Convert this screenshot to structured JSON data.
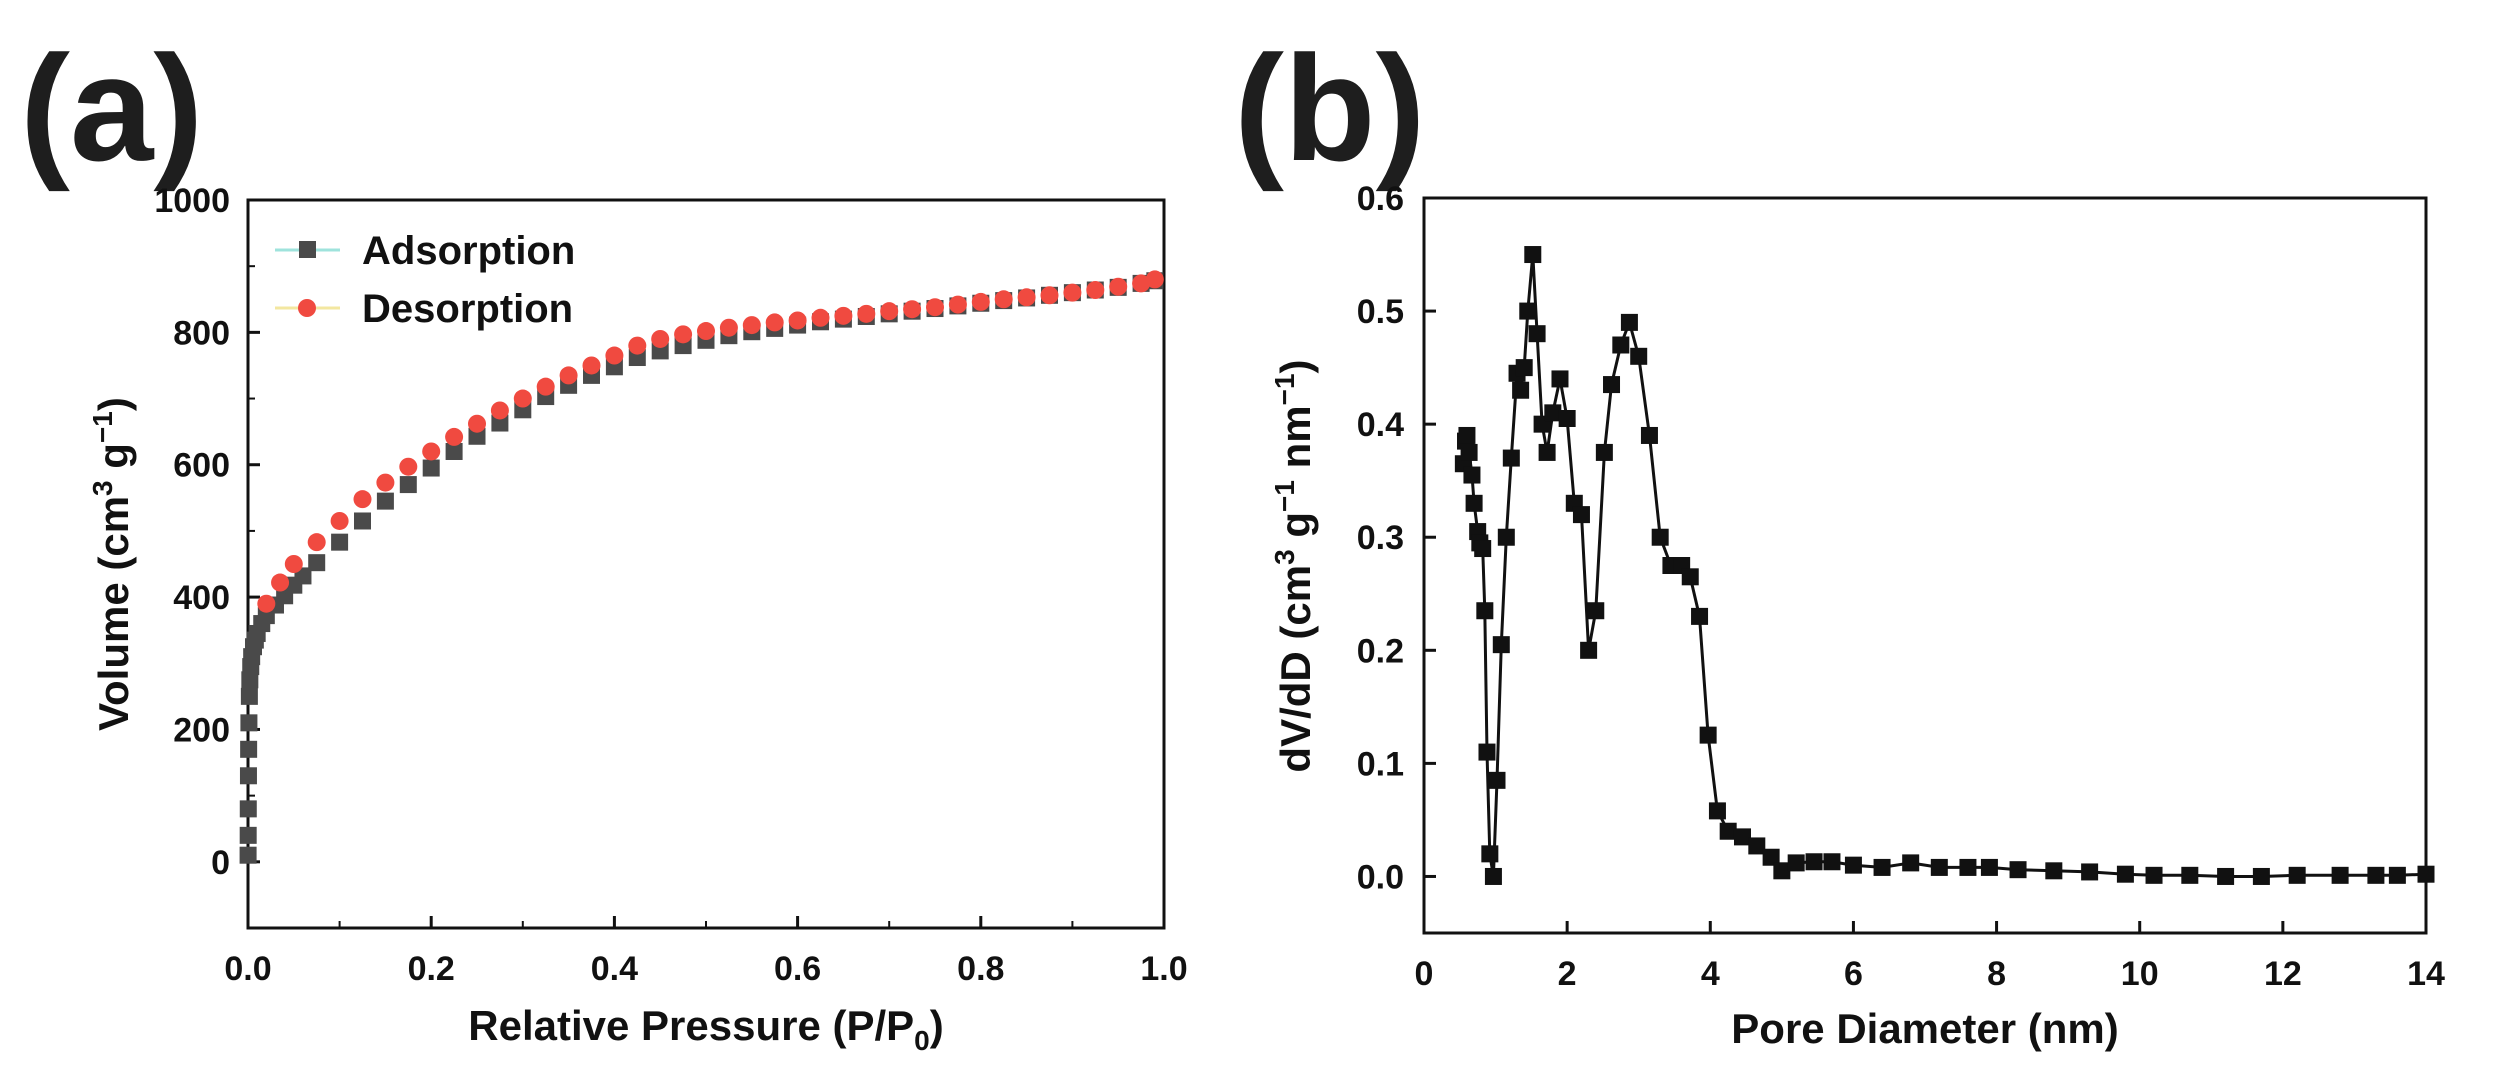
{
  "chart_data": [
    {
      "panel": "(a)",
      "type": "scatter",
      "xlabel": "Relative Pressure (P/P",
      "xlabel_sub": "0",
      "xlabel_tail": ")",
      "ylabel": "Volume (cm",
      "ylabel_sup": "3",
      "ylabel_mid": " g",
      "ylabel_sup2": "−1",
      "ylabel_tail": ")",
      "xlim": [
        0.0,
        1.0
      ],
      "ylim": [
        -100,
        1000
      ],
      "xticks": [
        0.0,
        0.2,
        0.4,
        0.6,
        0.8,
        1.0
      ],
      "xtick_labels": [
        "0.0",
        "0.2",
        "0.4",
        "0.6",
        "0.8",
        "1.0"
      ],
      "yticks": [
        0,
        200,
        400,
        600,
        800,
        1000
      ],
      "ytick_labels": [
        "0",
        "200",
        "400",
        "600",
        "800",
        "1000"
      ],
      "legend_position": "top-left",
      "series": [
        {
          "name": "Adsorption",
          "color": "#4a4a4a",
          "marker": "square",
          "x": [
            0.0001,
            0.0002,
            0.0003,
            0.0005,
            0.0007,
            0.001,
            0.0015,
            0.002,
            0.003,
            0.004,
            0.006,
            0.008,
            0.01,
            0.015,
            0.02,
            0.03,
            0.04,
            0.05,
            0.06,
            0.075,
            0.1,
            0.125,
            0.15,
            0.175,
            0.2,
            0.225,
            0.25,
            0.275,
            0.3,
            0.325,
            0.35,
            0.375,
            0.4,
            0.425,
            0.45,
            0.475,
            0.5,
            0.525,
            0.55,
            0.575,
            0.6,
            0.625,
            0.65,
            0.675,
            0.7,
            0.725,
            0.75,
            0.775,
            0.8,
            0.825,
            0.85,
            0.875,
            0.9,
            0.925,
            0.95,
            0.975,
            0.99
          ],
          "y": [
            10,
            40,
            80,
            130,
            170,
            210,
            250,
            275,
            295,
            310,
            325,
            335,
            345,
            360,
            372,
            388,
            402,
            418,
            432,
            452,
            483,
            515,
            545,
            570,
            595,
            620,
            643,
            663,
            683,
            703,
            720,
            735,
            748,
            762,
            772,
            780,
            788,
            795,
            801,
            806,
            811,
            816,
            820,
            824,
            828,
            832,
            836,
            840,
            844,
            848,
            852,
            856,
            860,
            864,
            868,
            874,
            878
          ]
        },
        {
          "name": "Desorption",
          "color": "#f04a40",
          "marker": "circle",
          "x": [
            0.99,
            0.975,
            0.95,
            0.925,
            0.9,
            0.875,
            0.85,
            0.825,
            0.8,
            0.775,
            0.75,
            0.725,
            0.7,
            0.675,
            0.65,
            0.625,
            0.6,
            0.575,
            0.55,
            0.525,
            0.5,
            0.475,
            0.45,
            0.425,
            0.4,
            0.375,
            0.35,
            0.325,
            0.3,
            0.275,
            0.25,
            0.225,
            0.2,
            0.175,
            0.15,
            0.125,
            0.1,
            0.075,
            0.05,
            0.035,
            0.02
          ],
          "y": [
            880,
            874,
            869,
            864,
            860,
            856,
            853,
            850,
            846,
            842,
            838,
            835,
            832,
            828,
            825,
            822,
            818,
            815,
            811,
            807,
            802,
            797,
            790,
            780,
            765,
            750,
            735,
            718,
            700,
            682,
            662,
            642,
            620,
            597,
            573,
            548,
            515,
            483,
            450,
            422,
            390
          ]
        }
      ]
    },
    {
      "panel": "(b)",
      "type": "line",
      "xlabel": "Pore Diameter (nm)",
      "ylabel": "dV/dD (cm",
      "ylabel_sup": "3",
      "ylabel_mid": " g",
      "ylabel_sup2": "−1",
      "ylabel_mid2": " nm",
      "ylabel_sup3": "−1",
      "ylabel_tail": ")",
      "xlim": [
        0,
        14
      ],
      "ylim": [
        -0.05,
        0.6
      ],
      "xticks": [
        0,
        2,
        4,
        6,
        8,
        10,
        12,
        14
      ],
      "xtick_labels": [
        "0",
        "2",
        "4",
        "6",
        "8",
        "10",
        "12",
        "14"
      ],
      "yticks": [
        0.0,
        0.1,
        0.2,
        0.3,
        0.4,
        0.5,
        0.6
      ],
      "ytick_labels": [
        "0.0",
        "0.1",
        "0.2",
        "0.3",
        "0.4",
        "0.5",
        "0.6"
      ],
      "series": [
        {
          "name": "dV/dD",
          "color": "#111111",
          "marker": "square",
          "x": [
            0.55,
            0.58,
            0.6,
            0.63,
            0.67,
            0.7,
            0.75,
            0.78,
            0.82,
            0.85,
            0.88,
            0.92,
            0.97,
            1.02,
            1.08,
            1.15,
            1.22,
            1.3,
            1.35,
            1.4,
            1.45,
            1.52,
            1.58,
            1.65,
            1.72,
            1.8,
            1.9,
            2.0,
            2.1,
            2.2,
            2.3,
            2.4,
            2.52,
            2.62,
            2.75,
            2.87,
            3.0,
            3.15,
            3.3,
            3.45,
            3.6,
            3.72,
            3.85,
            3.97,
            4.1,
            4.25,
            4.45,
            4.65,
            4.85,
            5.0,
            5.2,
            5.45,
            5.7,
            6.0,
            6.4,
            6.8,
            7.2,
            7.6,
            7.9,
            8.3,
            8.8,
            9.3,
            9.8,
            10.2,
            10.7,
            11.2,
            11.7,
            12.2,
            12.8,
            13.3,
            13.6,
            14.0
          ],
          "y": [
            0.365,
            0.385,
            0.39,
            0.375,
            0.355,
            0.33,
            0.305,
            0.295,
            0.29,
            0.235,
            0.11,
            0.02,
            0.0,
            0.085,
            0.205,
            0.3,
            0.37,
            0.445,
            0.43,
            0.45,
            0.5,
            0.55,
            0.48,
            0.4,
            0.375,
            0.41,
            0.44,
            0.405,
            0.33,
            0.32,
            0.2,
            0.235,
            0.375,
            0.435,
            0.47,
            0.49,
            0.46,
            0.39,
            0.3,
            0.275,
            0.275,
            0.265,
            0.23,
            0.125,
            0.058,
            0.04,
            0.035,
            0.027,
            0.017,
            0.005,
            0.012,
            0.013,
            0.013,
            0.01,
            0.008,
            0.012,
            0.008,
            0.008,
            0.008,
            0.006,
            0.005,
            0.004,
            0.002,
            0.001,
            0.001,
            0.0,
            0.0,
            0.001,
            0.001,
            0.001,
            0.001,
            0.002
          ]
        }
      ]
    }
  ]
}
